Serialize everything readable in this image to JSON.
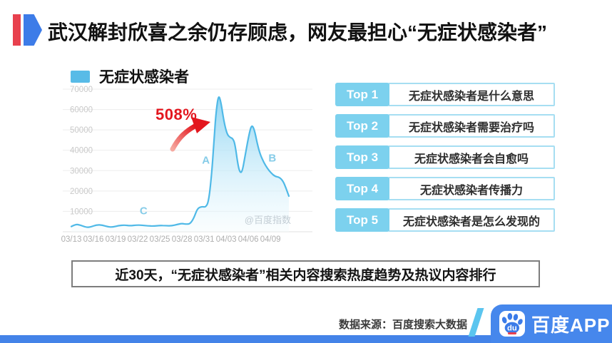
{
  "header": {
    "title": "武汉解封欣喜之余仍存顾虑，网友最担心“无症状感染者”"
  },
  "chart_data": {
    "type": "area",
    "title": "无症状感染者",
    "legend_label": "无症状感染者",
    "x_tick_labels": [
      "03/13",
      "03/16",
      "03/19",
      "03/22",
      "03/25",
      "03/28",
      "03/31",
      "04/03",
      "04/06",
      "04/09"
    ],
    "x_tick_days": [
      0,
      3,
      6,
      9,
      12,
      15,
      18,
      21,
      24,
      27
    ],
    "ylim": [
      0,
      70000
    ],
    "y_ticks": [
      10000,
      20000,
      30000,
      40000,
      50000,
      60000,
      70000
    ],
    "grid": true,
    "legend_position": "top-left",
    "watermark": "@百度指数",
    "growth_label": "508%",
    "annotations": [
      {
        "label": "A",
        "day": 18.25,
        "value": 33500
      },
      {
        "label": "B",
        "day": 27.25,
        "value": 34500
      },
      {
        "label": "C",
        "day": 9.8,
        "value": 8500
      }
    ],
    "series": [
      {
        "name": "无症状感染者",
        "points": [
          [
            0,
            2600
          ],
          [
            0.6,
            3700
          ],
          [
            1.2,
            3300
          ],
          [
            2,
            2200
          ],
          [
            2.6,
            2300
          ],
          [
            3.4,
            3400
          ],
          [
            4.2,
            3300
          ],
          [
            5,
            2400
          ],
          [
            5.6,
            2300
          ],
          [
            6.4,
            3000
          ],
          [
            7.2,
            3300
          ],
          [
            8,
            2900
          ],
          [
            8.8,
            3300
          ],
          [
            9.6,
            3200
          ],
          [
            10.4,
            2900
          ],
          [
            11.2,
            2800
          ],
          [
            12,
            3100
          ],
          [
            12.8,
            3000
          ],
          [
            13.6,
            2900
          ],
          [
            14.4,
            3600
          ],
          [
            15,
            4100
          ],
          [
            15.6,
            3700
          ],
          [
            16.1,
            3900
          ],
          [
            16.6,
            6500
          ],
          [
            17.1,
            11500
          ],
          [
            17.7,
            12400
          ],
          [
            18.2,
            12000
          ],
          [
            18.6,
            14500
          ],
          [
            19,
            27000
          ],
          [
            19.3,
            42000
          ],
          [
            19.6,
            58000
          ],
          [
            19.95,
            67500
          ],
          [
            20.3,
            63500
          ],
          [
            20.7,
            54000
          ],
          [
            21.1,
            48000
          ],
          [
            21.5,
            46300
          ],
          [
            21.9,
            45800
          ],
          [
            22.2,
            43000
          ],
          [
            22.6,
            32500
          ],
          [
            22.9,
            28800
          ],
          [
            23.2,
            29800
          ],
          [
            23.6,
            38000
          ],
          [
            24.1,
            48000
          ],
          [
            24.45,
            52500
          ],
          [
            24.8,
            50500
          ],
          [
            25.2,
            43500
          ],
          [
            25.6,
            38000
          ],
          [
            26.1,
            34000
          ],
          [
            26.6,
            31000
          ],
          [
            27.1,
            28800
          ],
          [
            27.6,
            27200
          ],
          [
            28.2,
            26800
          ],
          [
            28.7,
            25000
          ],
          [
            29.1,
            21500
          ],
          [
            29.5,
            17500
          ]
        ]
      }
    ]
  },
  "top_list": {
    "items": [
      {
        "rank": "Top 1",
        "text": "无症状感染者是什么意思"
      },
      {
        "rank": "Top 2",
        "text": "无症状感染者需要治疗吗"
      },
      {
        "rank": "Top 3",
        "text": "无症状感染者会自愈吗"
      },
      {
        "rank": "Top 4",
        "text": "无症状感染者传播力"
      },
      {
        "rank": "Top 5",
        "text": "无症状感染者是怎么发现的"
      }
    ]
  },
  "banner": {
    "text": "近30天，“无症状感染者”相关内容搜索热度趋势及热议内容排行"
  },
  "footer": {
    "source": "数据来源：百度搜索大数据",
    "app_name": "百度APP",
    "icon_text": "du"
  },
  "colors": {
    "marker_red": "#E8414E",
    "marker_blue": "#3D7CE8",
    "legend_swatch": "#58BBE7",
    "line": "#4FB9E7",
    "fill_top": "#8ED5F3",
    "fill_bottom": "#F2FBFE",
    "grid": "#EDEDED",
    "axis": "#E2E2E2",
    "y_label": "#C9C9C9",
    "x_label": "#AFAFAF",
    "annotation": "#86CCE8",
    "watermark": "#C3CDD4",
    "growth_red": "#E3161E",
    "growth_pink": "#F6A9A0",
    "badge_blue": "#7CD1EE",
    "box_border": "#A6DEF2",
    "stripe_blue": "#5BC5EF",
    "footer_blue": "#4687EC",
    "bar_blue": "#4483E8",
    "paw_blue": "#3B7BE8",
    "icon_red": "#E8404E"
  }
}
